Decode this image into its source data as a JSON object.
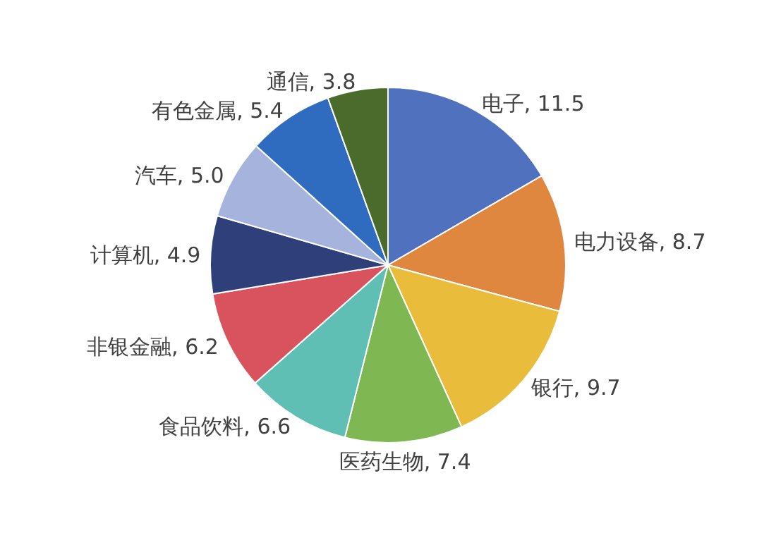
{
  "chart_data": {
    "type": "pie",
    "categories": [
      "电子",
      "电力设备",
      "银行",
      "医药生物",
      "食品饮料",
      "非银金融",
      "计算机",
      "汽车",
      "有色金属",
      "通信"
    ],
    "values": [
      11.5,
      8.7,
      9.7,
      7.4,
      6.6,
      6.2,
      4.9,
      5.0,
      5.4,
      3.8
    ],
    "colors": [
      "#4f71be",
      "#e0873f",
      "#e9bc3c",
      "#7fb852",
      "#5fbfb5",
      "#d9535f",
      "#2e3f7a",
      "#a6b4dd",
      "#2f6bbf",
      "#4a6b2b"
    ],
    "value_labels": [
      "11.5",
      "8.7",
      "9.7",
      "7.4",
      "6.6",
      "6.2",
      "4.9",
      "5.0",
      "5.4",
      "3.8"
    ]
  }
}
